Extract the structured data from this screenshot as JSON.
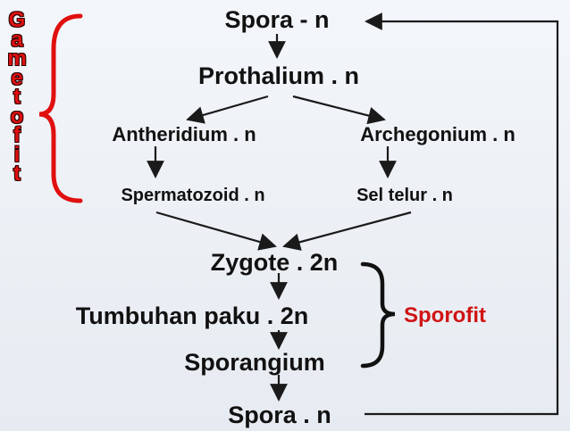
{
  "nodes": {
    "spora_top": "Spora - n",
    "prothalium": "Prothalium . n",
    "antheridium": "Antheridium . n",
    "archegonium": "Archegonium . n",
    "spermatozoid": "Spermatozoid . n",
    "sel_telur": "Sel telur . n",
    "zygote": "Zygote . 2n",
    "tumbuhan_paku": "Tumbuhan paku . 2n",
    "sporangium": "Sporangium",
    "spora_bottom": "Spora . n"
  },
  "labels": {
    "gametofit_letters": [
      "G",
      "a",
      "m",
      "e",
      "t",
      "o",
      "f",
      "i",
      "t"
    ],
    "sporofit": "Sporofit"
  },
  "colors": {
    "arrow": "#1a1a1a",
    "bracket_gametofit": "#e01010",
    "bracket_sporofit": "#111111",
    "label_text": "#d01414"
  }
}
